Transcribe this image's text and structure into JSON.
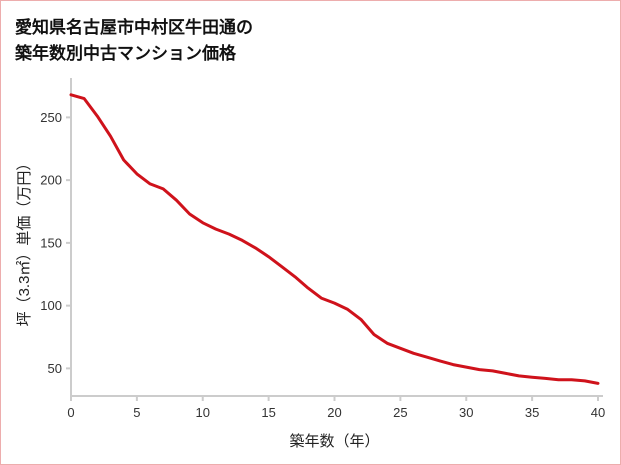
{
  "title": {
    "line1": "愛知県名古屋市中村区牛田通の",
    "line2": "築年数別中古マンション価格"
  },
  "chart_data": {
    "type": "line",
    "title": "愛知県名古屋市中村区牛田通の築年数別中古マンション価格",
    "xlabel": "築年数（年）",
    "ylabel": "坪（3.3㎡）単価（万円）",
    "x": [
      0,
      1,
      2,
      3,
      4,
      5,
      6,
      7,
      8,
      9,
      10,
      11,
      12,
      13,
      14,
      15,
      16,
      17,
      18,
      19,
      20,
      21,
      22,
      23,
      24,
      25,
      26,
      27,
      28,
      29,
      30,
      31,
      32,
      33,
      34,
      35,
      36,
      37,
      38,
      39,
      40
    ],
    "y": [
      268,
      265,
      251,
      235,
      216,
      205,
      197,
      193,
      184,
      173,
      166,
      161,
      157,
      152,
      146,
      139,
      131,
      123,
      114,
      106,
      102,
      97,
      89,
      77,
      70,
      66,
      62,
      59,
      56,
      53,
      51,
      49,
      48,
      46,
      44,
      43,
      42,
      41,
      41,
      40,
      38
    ],
    "xlim": [
      0,
      40
    ],
    "ylim": [
      28,
      275
    ],
    "xticks": [
      0,
      5,
      10,
      15,
      20,
      25,
      30,
      35,
      40
    ],
    "yticks": [
      50,
      100,
      150,
      200,
      250
    ],
    "line_color": "#cf121b",
    "axis_color": "#cccccc",
    "tick_label_color": "#333333",
    "grid": false,
    "legend": false
  }
}
